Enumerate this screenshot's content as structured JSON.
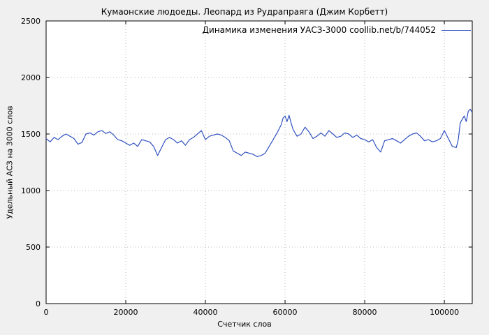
{
  "chart": {
    "title": "Кумаонские людоеды. Леопард из Рудрапраяга (Джим Корбетт)",
    "legend_label": "Динамика изменения УАСЗ-3000 coollib.net/b/744052",
    "xlabel": "Счетчик слов",
    "ylabel": "Удельный АСЗ на 3000 слов"
  },
  "chart_data": {
    "type": "line",
    "title": "Кумаонские людоеды. Леопард из Рудрапраяга (Джим Корбетт)",
    "xlabel": "Счетчик слов",
    "ylabel": "Удельный АСЗ на 3000 слов",
    "xlim": [
      0,
      107000
    ],
    "ylim": [
      0,
      2500
    ],
    "xticks": [
      0,
      20000,
      40000,
      60000,
      80000,
      100000
    ],
    "yticks": [
      0,
      500,
      1000,
      1500,
      2000,
      2500
    ],
    "grid": "dotted",
    "legend_position": "top-right-inside",
    "background": "#f0f0f0",
    "plot_background": "#ffffff",
    "series": [
      {
        "name": "Динамика изменения УАСЗ-3000 coollib.net/b/744052",
        "color": "#3050c0",
        "points": [
          [
            0,
            1460
          ],
          [
            1000,
            1430
          ],
          [
            2000,
            1470
          ],
          [
            3000,
            1450
          ],
          [
            4000,
            1480
          ],
          [
            5000,
            1500
          ],
          [
            6000,
            1480
          ],
          [
            7000,
            1460
          ],
          [
            8000,
            1410
          ],
          [
            9000,
            1425
          ],
          [
            10000,
            1500
          ],
          [
            11000,
            1510
          ],
          [
            12000,
            1490
          ],
          [
            13000,
            1520
          ],
          [
            14000,
            1530
          ],
          [
            15000,
            1505
          ],
          [
            16000,
            1520
          ],
          [
            17000,
            1490
          ],
          [
            18000,
            1450
          ],
          [
            19000,
            1440
          ],
          [
            20000,
            1420
          ],
          [
            21000,
            1400
          ],
          [
            22000,
            1420
          ],
          [
            23000,
            1390
          ],
          [
            24000,
            1450
          ],
          [
            25000,
            1440
          ],
          [
            26000,
            1430
          ],
          [
            27000,
            1390
          ],
          [
            28000,
            1310
          ],
          [
            29000,
            1380
          ],
          [
            30000,
            1450
          ],
          [
            31000,
            1470
          ],
          [
            32000,
            1450
          ],
          [
            33000,
            1420
          ],
          [
            34000,
            1440
          ],
          [
            35000,
            1400
          ],
          [
            36000,
            1450
          ],
          [
            37000,
            1470
          ],
          [
            38000,
            1500
          ],
          [
            39000,
            1530
          ],
          [
            40000,
            1450
          ],
          [
            41000,
            1480
          ],
          [
            42000,
            1490
          ],
          [
            43000,
            1500
          ],
          [
            44000,
            1490
          ],
          [
            45000,
            1470
          ],
          [
            46000,
            1440
          ],
          [
            47000,
            1350
          ],
          [
            48000,
            1330
          ],
          [
            49000,
            1310
          ],
          [
            50000,
            1340
          ],
          [
            51000,
            1330
          ],
          [
            52000,
            1320
          ],
          [
            53000,
            1300
          ],
          [
            54000,
            1310
          ],
          [
            55000,
            1330
          ],
          [
            56000,
            1390
          ],
          [
            57000,
            1450
          ],
          [
            58000,
            1510
          ],
          [
            59000,
            1580
          ],
          [
            59500,
            1640
          ],
          [
            60000,
            1660
          ],
          [
            60500,
            1610
          ],
          [
            61000,
            1665
          ],
          [
            61500,
            1600
          ],
          [
            62000,
            1540
          ],
          [
            63000,
            1480
          ],
          [
            64000,
            1500
          ],
          [
            65000,
            1560
          ],
          [
            66000,
            1520
          ],
          [
            67000,
            1460
          ],
          [
            68000,
            1480
          ],
          [
            69000,
            1510
          ],
          [
            70000,
            1480
          ],
          [
            71000,
            1530
          ],
          [
            72000,
            1500
          ],
          [
            73000,
            1470
          ],
          [
            74000,
            1480
          ],
          [
            75000,
            1510
          ],
          [
            76000,
            1500
          ],
          [
            77000,
            1470
          ],
          [
            78000,
            1490
          ],
          [
            79000,
            1460
          ],
          [
            80000,
            1450
          ],
          [
            81000,
            1430
          ],
          [
            82000,
            1450
          ],
          [
            83000,
            1380
          ],
          [
            84000,
            1340
          ],
          [
            85000,
            1440
          ],
          [
            86000,
            1450
          ],
          [
            87000,
            1460
          ],
          [
            88000,
            1440
          ],
          [
            89000,
            1420
          ],
          [
            90000,
            1450
          ],
          [
            91000,
            1480
          ],
          [
            92000,
            1500
          ],
          [
            93000,
            1510
          ],
          [
            94000,
            1480
          ],
          [
            95000,
            1440
          ],
          [
            96000,
            1450
          ],
          [
            97000,
            1430
          ],
          [
            98000,
            1440
          ],
          [
            99000,
            1460
          ],
          [
            100000,
            1530
          ],
          [
            101000,
            1460
          ],
          [
            102000,
            1390
          ],
          [
            103000,
            1380
          ],
          [
            103500,
            1450
          ],
          [
            104000,
            1600
          ],
          [
            105000,
            1660
          ],
          [
            105500,
            1610
          ],
          [
            106000,
            1700
          ],
          [
            106500,
            1720
          ],
          [
            107000,
            1690
          ]
        ]
      }
    ]
  }
}
